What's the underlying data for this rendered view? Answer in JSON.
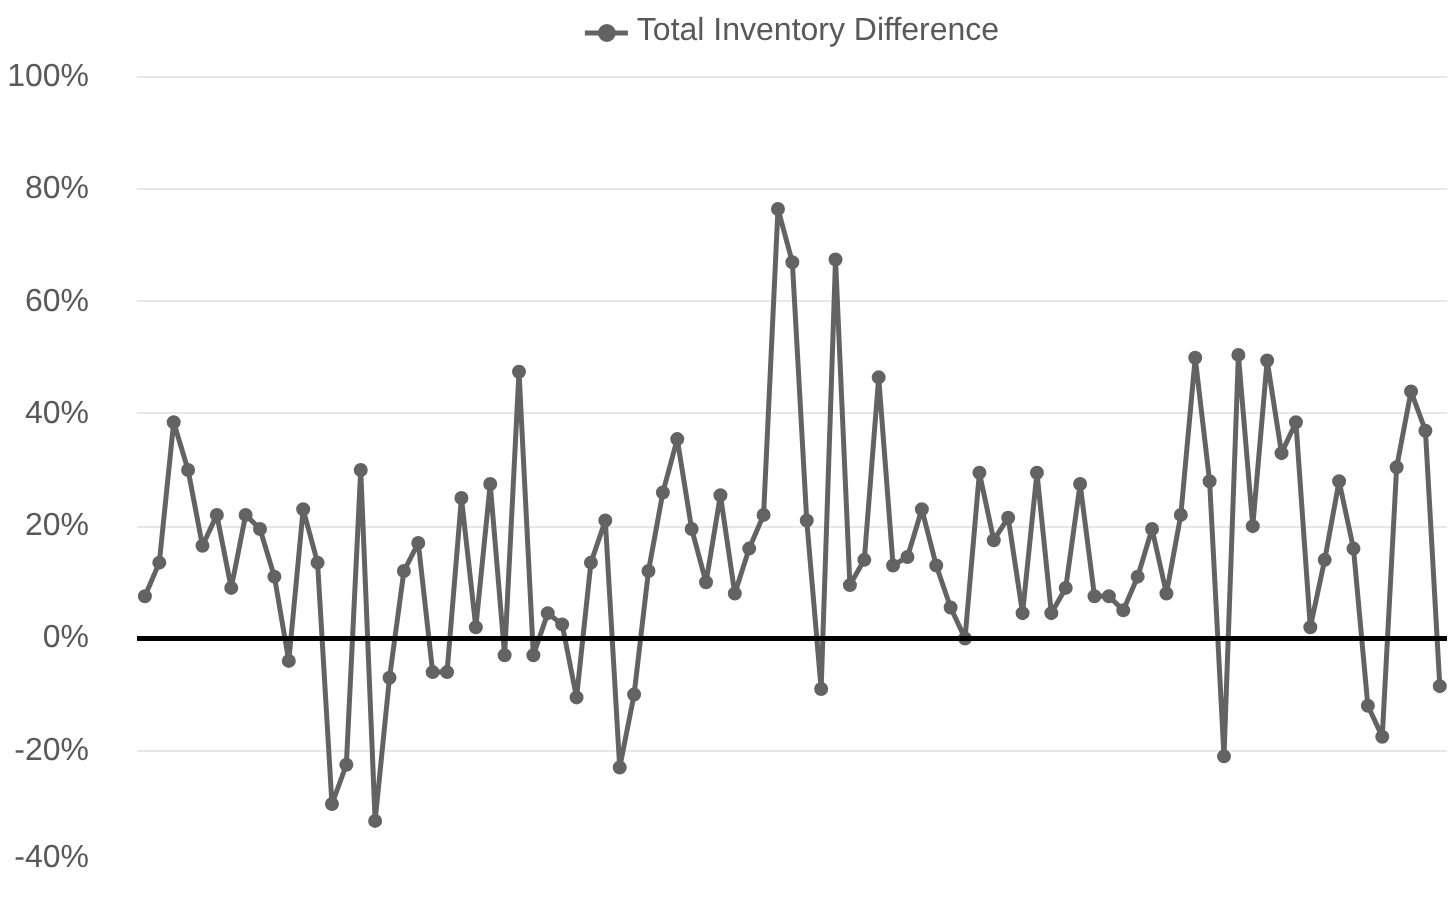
{
  "chart_data": {
    "type": "line",
    "categories": [
      null,
      null,
      null,
      null,
      null,
      null,
      null,
      null,
      null,
      null,
      null,
      null,
      null,
      null,
      null,
      null,
      null,
      null,
      null,
      null,
      null,
      null,
      null,
      null,
      null,
      null,
      null,
      null,
      null,
      null,
      null,
      null,
      null,
      null,
      null,
      null,
      null,
      null,
      null,
      null,
      null,
      null,
      null,
      null,
      null,
      null,
      null,
      null,
      null,
      null,
      null,
      null,
      null,
      null,
      null,
      null,
      null,
      null,
      null,
      null,
      null,
      null,
      null,
      null,
      null,
      null,
      null,
      null,
      null,
      null,
      null,
      null,
      null,
      null,
      null,
      null,
      null,
      null,
      null,
      null,
      null,
      null,
      null,
      null,
      null,
      null,
      null,
      null,
      null,
      null,
      null
    ],
    "series": [
      {
        "name": "Total Inventory Difference",
        "color": "#636363",
        "values": [
          7.5,
          13.5,
          38.5,
          30,
          16.5,
          22,
          9,
          22,
          19.5,
          11,
          -4,
          23,
          13.5,
          -29.5,
          -22.5,
          30,
          -32.5,
          -7,
          12,
          17,
          -6,
          -6,
          25,
          2,
          27.5,
          -3,
          47.5,
          -3,
          4.5,
          2.5,
          -10.5,
          13.5,
          21,
          -23,
          -10,
          12,
          26,
          35.5,
          19.5,
          10,
          25.5,
          8,
          16,
          22,
          76.5,
          67,
          21,
          -9,
          67.5,
          9.5,
          14,
          46.5,
          13,
          14.5,
          23,
          13,
          5.5,
          0,
          29.5,
          17.5,
          21.5,
          4.5,
          29.5,
          4.5,
          9,
          27.5,
          7.5,
          7.5,
          5,
          11,
          19.5,
          8,
          22,
          50,
          28,
          -21,
          50.5,
          20,
          49.5,
          33,
          38.5,
          2,
          14,
          28,
          16,
          -12,
          -17.5,
          30.5,
          44,
          37,
          -8.5
        ]
      }
    ],
    "ylim": [
      -40,
      100
    ],
    "yticks": [
      {
        "value": -40,
        "label": "-40%"
      },
      {
        "value": -20,
        "label": "-20%"
      },
      {
        "value": 0,
        "label": "0%"
      },
      {
        "value": 20,
        "label": "20%"
      },
      {
        "value": 40,
        "label": "40%"
      },
      {
        "value": 60,
        "label": "60%"
      },
      {
        "value": 80,
        "label": "80%"
      },
      {
        "value": 100,
        "label": "100%"
      }
    ],
    "grid": "y",
    "legend": "top",
    "marker": "circle",
    "line_style": "solid",
    "tick_labels": "y",
    "ref_lines": [
      {
        "axis": "y",
        "value": 0,
        "color": "#000000"
      }
    ]
  }
}
